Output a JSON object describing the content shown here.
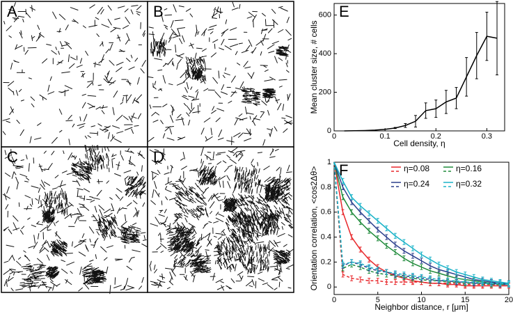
{
  "panels": [
    "A",
    "B",
    "C",
    "D"
  ],
  "chart_data": [
    {
      "type": "line",
      "panel": "E",
      "x_label": "Cell density, η",
      "y_label": "Mean cluster size,  # cells",
      "x": [
        0.02,
        0.04,
        0.06,
        0.08,
        0.1,
        0.12,
        0.14,
        0.16,
        0.18,
        0.2,
        0.22,
        0.24,
        0.26,
        0.28,
        0.3,
        0.32
      ],
      "values": [
        0,
        1,
        2,
        4,
        8,
        15,
        28,
        50,
        105,
        115,
        150,
        170,
        280,
        390,
        490,
        480
      ],
      "errors": [
        0,
        0,
        0,
        0,
        0,
        3,
        10,
        30,
        40,
        45,
        60,
        55,
        100,
        120,
        125,
        190
      ],
      "color": "#000000",
      "xlim": [
        0,
        0.335
      ],
      "xticks": [
        0,
        0.1,
        0.2,
        0.3
      ],
      "ylim": [
        0,
        660
      ],
      "yticks": [
        0,
        200,
        400,
        600
      ]
    },
    {
      "type": "line",
      "panel": "F",
      "x_label": "Neighbor distance, r [μm]",
      "y_label": "Orientation correlation, <cos2Δθ>",
      "x": [
        0,
        1,
        2,
        3,
        4,
        5,
        6,
        7,
        8,
        9,
        10,
        11,
        12,
        13,
        14,
        15,
        16,
        17,
        18,
        19,
        20
      ],
      "series": [
        {
          "name": "η=0.08",
          "color": "#e8262a",
          "error": 0.02,
          "values": [
            1.0,
            0.6,
            0.4,
            0.3,
            0.22,
            0.16,
            0.12,
            0.09,
            0.07,
            0.05,
            0.04,
            0.03,
            0.03,
            0.02,
            0.02,
            0.01,
            0.01,
            0.01,
            0.01,
            0.01,
            0.01
          ],
          "dashed_values": [
            1.0,
            0.1,
            0.07,
            0.06,
            0.05,
            0.05,
            0.04,
            0.04,
            0.04,
            0.04,
            0.04,
            0.03,
            0.03,
            0.03,
            0.03,
            0.02,
            0.02,
            0.02,
            0.02,
            0.02,
            0.02
          ]
        },
        {
          "name": "η=0.16",
          "color": "#1f8a3a",
          "error": 0.02,
          "values": [
            1.0,
            0.72,
            0.6,
            0.52,
            0.45,
            0.39,
            0.33,
            0.28,
            0.23,
            0.19,
            0.16,
            0.13,
            0.11,
            0.09,
            0.07,
            0.06,
            0.05,
            0.04,
            0.03,
            0.03,
            0.02
          ],
          "dashed_values": [
            1.0,
            0.15,
            0.18,
            0.16,
            0.13,
            0.11,
            0.1,
            0.09,
            0.08,
            0.07,
            0.06,
            0.05,
            0.05,
            0.04,
            0.04,
            0.03,
            0.03,
            0.03,
            0.02,
            0.02,
            0.02
          ]
        },
        {
          "name": "η=0.24",
          "color": "#2b3f8c",
          "error": 0.02,
          "values": [
            1.0,
            0.8,
            0.68,
            0.6,
            0.53,
            0.46,
            0.4,
            0.34,
            0.29,
            0.25,
            0.21,
            0.17,
            0.14,
            0.12,
            0.1,
            0.08,
            0.06,
            0.05,
            0.04,
            0.03,
            0.03
          ],
          "dashed_values": [
            1.0,
            0.17,
            0.2,
            0.18,
            0.15,
            0.13,
            0.12,
            0.1,
            0.09,
            0.08,
            0.07,
            0.06,
            0.05,
            0.05,
            0.04,
            0.04,
            0.03,
            0.03,
            0.03,
            0.02,
            0.02
          ]
        },
        {
          "name": "η=0.32",
          "color": "#1ab3c8",
          "error": 0.02,
          "values": [
            1.0,
            0.85,
            0.72,
            0.65,
            0.59,
            0.53,
            0.47,
            0.41,
            0.36,
            0.31,
            0.26,
            0.22,
            0.18,
            0.15,
            0.12,
            0.1,
            0.08,
            0.06,
            0.05,
            0.04,
            0.03
          ],
          "dashed_values": [
            1.0,
            0.18,
            0.2,
            0.19,
            0.16,
            0.14,
            0.12,
            0.11,
            0.1,
            0.09,
            0.08,
            0.07,
            0.06,
            0.05,
            0.05,
            0.04,
            0.04,
            0.03,
            0.03,
            0.03,
            0.02
          ]
        }
      ],
      "xlim": [
        0,
        20
      ],
      "xticks": [
        0,
        5,
        10,
        15,
        20
      ],
      "ylim": [
        -0.06,
        1.0
      ],
      "yticks": [
        0,
        0.2,
        0.4,
        0.6,
        0.8,
        1
      ]
    }
  ]
}
